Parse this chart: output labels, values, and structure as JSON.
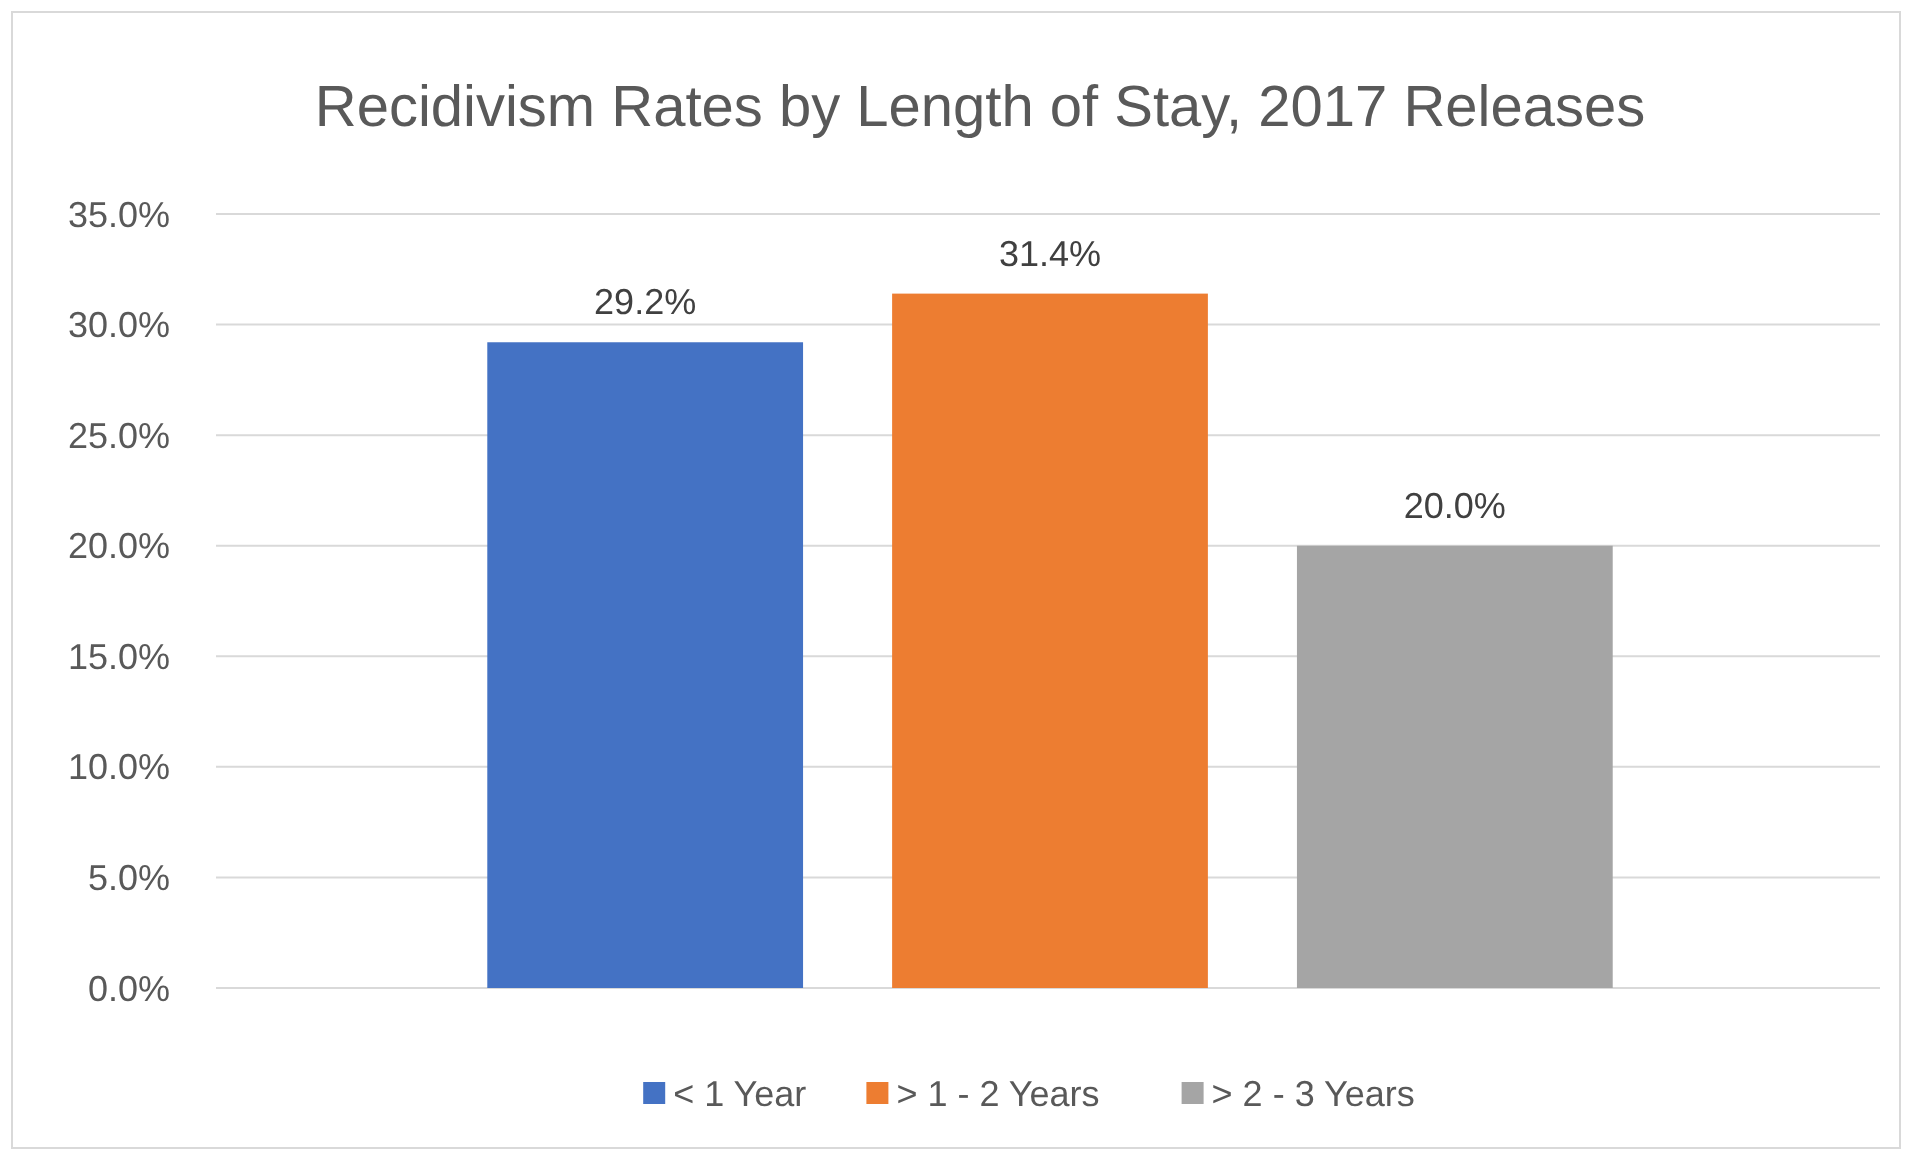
{
  "chart_data": {
    "type": "bar",
    "title": "Recidivism Rates by Length of Stay, 2017 Releases",
    "categories": [
      null
    ],
    "series": [
      {
        "name": "< 1 Year",
        "color": "#4472c4",
        "values": [
          29.2
        ]
      },
      {
        "name": "> 1 - 2 Years",
        "color": "#ed7d31",
        "values": [
          31.4
        ]
      },
      {
        "name": "> 2 - 3 Years",
        "color": "#a5a5a5",
        "values": [
          20.0
        ]
      }
    ],
    "ylim": [
      0,
      35
    ],
    "yticks": [
      {
        "value": 0,
        "label": "0.0%"
      },
      {
        "value": 5,
        "label": "5.0%"
      },
      {
        "value": 10,
        "label": "10.0%"
      },
      {
        "value": 15,
        "label": "15.0%"
      },
      {
        "value": 20,
        "label": "20.0%"
      },
      {
        "value": 25,
        "label": "25.0%"
      },
      {
        "value": 30,
        "label": "30.0%"
      },
      {
        "value": 35,
        "label": "35.0%"
      }
    ],
    "value_labels": [
      "29.2%",
      "31.4%",
      "20.0%"
    ],
    "grid": "y",
    "legend": "bottom"
  }
}
